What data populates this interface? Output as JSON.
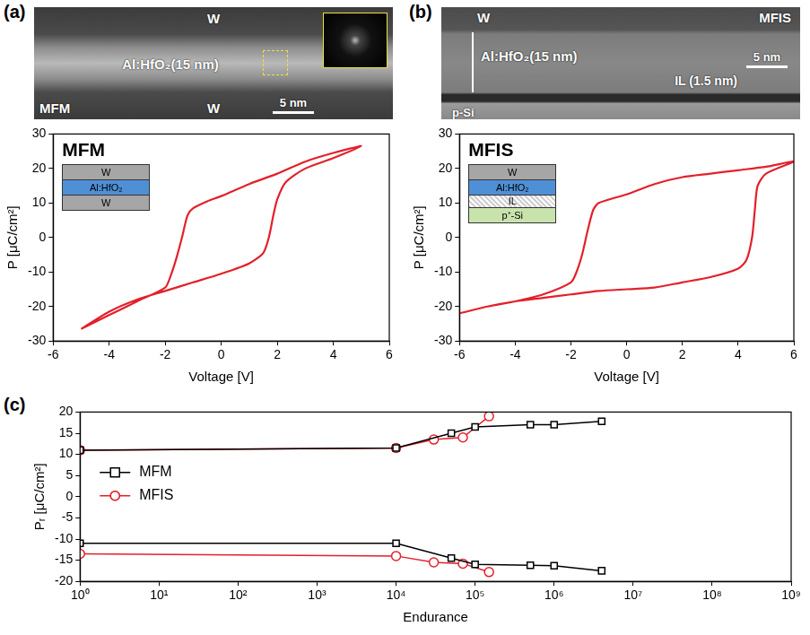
{
  "chart_data": [
    {
      "panel": "(a)",
      "type": "line",
      "title": "MFM",
      "image": {
        "top": "W",
        "layer": "Al:HfO₂(15 nm)",
        "bottom": "W",
        "sample": "MFM",
        "scale_bar": "5 nm"
      },
      "inset": [
        "W",
        "Al:HfO₂",
        "W"
      ],
      "x_label": "Voltage [V]",
      "y_label": "P [μC/cm²]",
      "series": [
        {
          "color": "#e3202b",
          "x": [
            -5,
            -4,
            -3,
            -2,
            -1,
            0,
            1,
            1.5,
            1.7,
            1.85,
            2,
            2.3,
            3,
            4,
            5,
            4,
            3,
            2,
            1,
            0,
            -0.5,
            -1,
            -1.2,
            -1.4,
            -1.6,
            -1.8,
            -2,
            -3,
            -4,
            -5
          ],
          "values": [
            -26.5,
            -21.5,
            -18,
            -15.5,
            -13,
            -10.5,
            -7.5,
            -4.5,
            0,
            6,
            11,
            16,
            20,
            23,
            26.5,
            24.5,
            22,
            18.5,
            15.5,
            12,
            10.5,
            8.5,
            6.5,
            0,
            -6,
            -11,
            -14.5,
            -18.5,
            -22.5,
            -26.5
          ]
        }
      ],
      "xlim": [
        -6,
        6
      ],
      "xticks": [
        -6,
        -4,
        -2,
        0,
        2,
        4,
        6
      ],
      "ylim": [
        -30,
        30
      ],
      "yticks": [
        -30,
        -20,
        -10,
        0,
        10,
        20,
        30
      ],
      "grid": false
    },
    {
      "panel": "(b)",
      "type": "line",
      "title": "MFIS",
      "image": {
        "top": "W",
        "layer": "Al:HfO₂(15 nm)",
        "interlayer": "IL (1.5 nm)",
        "bottom": "p-Si",
        "sample": "MFIS",
        "scale_bar": "5 nm"
      },
      "inset": [
        "W",
        "Al:HfO₂",
        "IL",
        "p⁺-Si"
      ],
      "x_label": "Voltage [V]",
      "y_label": "P [μC/cm²]",
      "series": [
        {
          "color": "#e3202b",
          "x": [
            -6,
            -5,
            -4,
            -3,
            -2,
            -1,
            0,
            1,
            2,
            3,
            4,
            4.3,
            4.5,
            4.6,
            4.7,
            5,
            6,
            5,
            4,
            3,
            2,
            1,
            0,
            -1,
            -1.2,
            -1.4,
            -1.6,
            -1.8,
            -2,
            -3,
            -4,
            -5,
            -6
          ],
          "values": [
            -22,
            -20,
            -18.5,
            -17.5,
            -16.5,
            -15.5,
            -15,
            -14.5,
            -13,
            -11.5,
            -9,
            -6.5,
            0,
            8,
            15,
            18.5,
            22,
            20.5,
            19.5,
            18.5,
            17.5,
            15.5,
            12.5,
            10,
            8,
            2,
            -5,
            -10,
            -13,
            -16.5,
            -18.5,
            -20,
            -22
          ]
        }
      ],
      "xlim": [
        -6,
        6
      ],
      "xticks": [
        -6,
        -4,
        -2,
        0,
        2,
        4,
        6
      ],
      "ylim": [
        -30,
        30
      ],
      "yticks": [
        -30,
        -20,
        -10,
        0,
        10,
        20,
        30
      ],
      "grid": false
    },
    {
      "panel": "(c)",
      "type": "line",
      "x_label": "Endurance",
      "y_label": "Pᵣ [μC/cm²]",
      "log": "x",
      "series": [
        {
          "name": "MFM",
          "color": "#000000",
          "marker": "square",
          "x": [
            1,
            10000,
            50000,
            100000,
            500000,
            1000000,
            4000000
          ],
          "values": [
            11,
            11.5,
            15,
            16.5,
            17,
            17,
            17.8
          ],
          "values_negative": [
            -11,
            -11,
            -14.5,
            -16,
            -16.2,
            -16.3,
            -17.5
          ]
        },
        {
          "name": "MFIS",
          "color": "#e3202b",
          "marker": "circle",
          "x": [
            1,
            10000,
            30000,
            70000,
            150000
          ],
          "values": [
            11,
            11.5,
            13.5,
            14,
            19
          ],
          "values_negative": [
            -13.5,
            -14,
            -15.5,
            -15.8,
            -17.8
          ]
        }
      ],
      "xlim": [
        1,
        1000000000
      ],
      "xticks": [
        {
          "value": 1,
          "label": "10⁰"
        },
        {
          "value": 10,
          "label": "10¹"
        },
        {
          "value": 100,
          "label": "10²"
        },
        {
          "value": 1000,
          "label": "10³"
        },
        {
          "value": 10000,
          "label": "10⁴"
        },
        {
          "value": 100000,
          "label": "10⁵"
        },
        {
          "value": 1000000,
          "label": "10⁶"
        },
        {
          "value": 10000000,
          "label": "10⁷"
        },
        {
          "value": 100000000,
          "label": "10⁸"
        },
        {
          "value": 1000000000,
          "label": "10⁹"
        }
      ],
      "ylim": [
        -20,
        20
      ],
      "yticks": [
        -20,
        -15,
        -10,
        -5,
        0,
        5,
        10,
        15,
        20
      ],
      "grid": false,
      "legend": "left"
    }
  ]
}
